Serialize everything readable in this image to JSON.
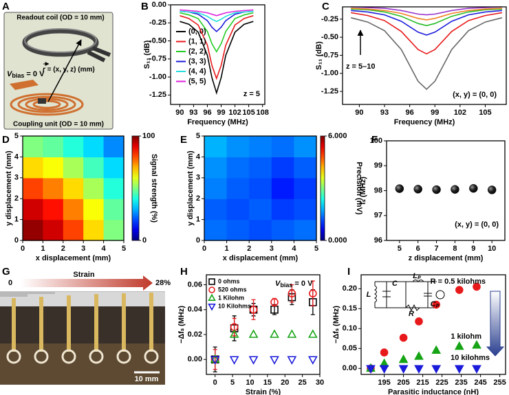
{
  "illustrations": {
    "A": {
      "panel": "A",
      "coil_label": "Readout coil (OD = 10 mm)",
      "bias_symbol": "V",
      "bias_subscript": "bias",
      "bias_text": " = 0 V",
      "vector_symbol": "r",
      "vector_text": " = (x, y, z) (mm)",
      "unit_label": "Coupling unit (OD = 10 mm)"
    },
    "G": {
      "panel": "G",
      "strain_label": "Strain",
      "start_label": "0",
      "end_label": "28%",
      "scale_label": "10 mm"
    }
  },
  "chart_data": [
    {
      "type": "line",
      "panel": "B",
      "xlabel": "Frequency (MHz)",
      "ylabel": "S₁₁ (dB)",
      "annotations": [
        "z = 5"
      ],
      "x": [
        90,
        92,
        94,
        96,
        97,
        98,
        99,
        100,
        102,
        104,
        106
      ],
      "xlim": [
        88,
        108.5
      ],
      "xticks": [
        90,
        93,
        96,
        99,
        102,
        105,
        108
      ],
      "ylim": [
        -1.38,
        0
      ],
      "yticks": [
        {
          "value": 0,
          "label": "0.00"
        },
        {
          "value": -0.25,
          "label": "-0.25"
        },
        {
          "value": -0.5,
          "label": "-0.50"
        },
        {
          "value": -0.75,
          "label": "-0.75"
        },
        {
          "value": -1,
          "label": "-1.00"
        },
        {
          "value": -1.25,
          "label": "-1.25"
        }
      ],
      "legend": "center left",
      "series": [
        {
          "name": "(0, 0)",
          "color": "#000000",
          "values": [
            -0.23,
            -0.27,
            -0.38,
            -0.7,
            -1.01,
            -1.22,
            -1.01,
            -0.7,
            -0.38,
            -0.27,
            -0.23
          ]
        },
        {
          "name": "(1, 1)",
          "color": "#e8191b",
          "values": [
            -0.15,
            -0.19,
            -0.28,
            -0.56,
            -0.84,
            -1.02,
            -0.84,
            -0.56,
            -0.28,
            -0.19,
            -0.15
          ]
        },
        {
          "name": "(2, 2)",
          "color": "#22cc22",
          "values": [
            -0.11,
            -0.14,
            -0.19,
            -0.37,
            -0.54,
            -0.65,
            -0.54,
            -0.37,
            -0.19,
            -0.14,
            -0.11
          ]
        },
        {
          "name": "(3, 3)",
          "color": "#1a1adb",
          "values": [
            -0.09,
            -0.1,
            -0.13,
            -0.22,
            -0.31,
            -0.37,
            -0.31,
            -0.22,
            -0.13,
            -0.1,
            -0.09
          ]
        },
        {
          "name": "(4, 4)",
          "color": "#22dddd",
          "values": [
            -0.09,
            -0.1,
            -0.11,
            -0.16,
            -0.2,
            -0.23,
            -0.2,
            -0.16,
            -0.11,
            -0.1,
            -0.09
          ]
        },
        {
          "name": "(5, 5)",
          "color": "#dd22dd",
          "values": [
            -0.07,
            -0.08,
            -0.09,
            -0.11,
            -0.13,
            -0.15,
            -0.13,
            -0.11,
            -0.09,
            -0.08,
            -0.07
          ]
        }
      ]
    },
    {
      "type": "line",
      "panel": "C",
      "xlabel": "Frequency (MHz)",
      "ylabel": "S₁₁ (dB)",
      "annotations": [
        "z = 5–10",
        "(x, y) = (0, 0)"
      ],
      "x": [
        89,
        91,
        93,
        95,
        97,
        98,
        99,
        101,
        103,
        105,
        107
      ],
      "xlim": [
        88,
        107.5
      ],
      "xticks": [
        90,
        93,
        96,
        99,
        102,
        105
      ],
      "ylim": [
        -1.43,
        -0.08
      ],
      "yticks": [
        {
          "value": -0.25,
          "label": "-0.25"
        },
        {
          "value": -0.5,
          "label": "-0.50"
        },
        {
          "value": -0.75,
          "label": "-0.75"
        },
        {
          "value": -1,
          "label": "-1.00"
        },
        {
          "value": -1.25,
          "label": "-1.25"
        }
      ],
      "series": [
        {
          "color": "#666666",
          "values": [
            -0.23,
            -0.29,
            -0.41,
            -0.67,
            -1.11,
            -1.22,
            -1.11,
            -0.67,
            -0.41,
            -0.29,
            -0.23
          ]
        },
        {
          "color": "#e8191b",
          "values": [
            -0.16,
            -0.2,
            -0.27,
            -0.42,
            -0.67,
            -0.73,
            -0.67,
            -0.42,
            -0.27,
            -0.2,
            -0.16
          ]
        },
        {
          "color": "#1a1adb",
          "values": [
            -0.13,
            -0.15,
            -0.19,
            -0.28,
            -0.43,
            -0.47,
            -0.43,
            -0.28,
            -0.19,
            -0.15,
            -0.13
          ]
        },
        {
          "color": "#22bb22",
          "values": [
            -0.11,
            -0.12,
            -0.15,
            -0.21,
            -0.31,
            -0.34,
            -0.31,
            -0.21,
            -0.15,
            -0.12,
            -0.11
          ]
        },
        {
          "color": "#f08020",
          "values": [
            -0.1,
            -0.11,
            -0.13,
            -0.17,
            -0.24,
            -0.26,
            -0.24,
            -0.17,
            -0.13,
            -0.11,
            -0.1
          ]
        },
        {
          "color": "#9933cc",
          "values": [
            -0.08,
            -0.09,
            -0.1,
            -0.13,
            -0.18,
            -0.19,
            -0.18,
            -0.13,
            -0.1,
            -0.09,
            -0.08
          ]
        }
      ]
    },
    {
      "type": "heatmap",
      "panel": "D",
      "xlabel": "x displacement (mm)",
      "ylabel": "y displacement (mm)",
      "colorbar_label": "Signal strength (%)",
      "x": [
        0.5,
        1.5,
        2.5,
        3.5,
        4.5
      ],
      "y": [
        0.5,
        1.5,
        2.5,
        3.5,
        4.5
      ],
      "xlim": [
        0,
        5
      ],
      "ylim": [
        0,
        5
      ],
      "xticks": [
        0,
        1,
        2,
        3,
        4,
        5
      ],
      "yticks": [
        0,
        1,
        2,
        3,
        4,
        5
      ],
      "colormap": "jet",
      "clim": [
        0,
        100
      ],
      "cticks": [
        0,
        100
      ],
      "z": [
        [
          98,
          92,
          81,
          66,
          50
        ],
        [
          92,
          86,
          75,
          62,
          47
        ],
        [
          81,
          75,
          66,
          54,
          41
        ],
        [
          66,
          62,
          54,
          44,
          34
        ],
        [
          50,
          47,
          41,
          34,
          26
        ]
      ]
    },
    {
      "type": "heatmap",
      "panel": "E",
      "xlabel": "x displacement (mm)",
      "ylabel": "y displacement (mm)",
      "colorbar_label": "Precision (mV)",
      "x": [
        0.5,
        1.5,
        2.5,
        3.5,
        4.5
      ],
      "y": [
        0.5,
        1.5,
        2.5,
        3.5,
        4.5
      ],
      "xlim": [
        0,
        5
      ],
      "ylim": [
        0,
        5
      ],
      "xticks": [
        0,
        1,
        2,
        3,
        4,
        5
      ],
      "yticks": [
        0,
        1,
        2,
        3,
        4,
        5
      ],
      "colormap": "jet",
      "clim": [
        0,
        6
      ],
      "cticks": [
        {
          "value": 0,
          "label": "0.000"
        },
        {
          "value": 6,
          "label": "6.000"
        }
      ],
      "z": [
        [
          1.4,
          1.3,
          1.2,
          1.3,
          1.4
        ],
        [
          1.3,
          1.2,
          1.3,
          1.1,
          1.2
        ],
        [
          1.5,
          1.3,
          1.2,
          0.9,
          1.1
        ],
        [
          1.6,
          1.4,
          1.3,
          1.1,
          1.3
        ],
        [
          1.8,
          1.6,
          1.5,
          1.4,
          1.6
        ]
      ]
    },
    {
      "type": "scatter",
      "panel": "F",
      "xlabel": "z displacement (mm)",
      "ylabel": "fₛ (MHz)",
      "annotations": [
        "(x, y) = (0, 0)"
      ],
      "x": [
        5,
        6,
        7,
        8,
        9,
        10
      ],
      "xlim": [
        4.3,
        10.7
      ],
      "xticks": [
        5,
        6,
        7,
        8,
        9,
        10
      ],
      "ylim": [
        96,
        100
      ],
      "yticks": [
        96,
        97,
        98,
        99,
        100
      ],
      "series": [
        {
          "color": "#000000",
          "marker": "sphere",
          "values": [
            98.08,
            98.06,
            98.04,
            98.05,
            98.09,
            98.03
          ]
        }
      ]
    },
    {
      "type": "scatter",
      "panel": "H",
      "xlabel": "Strain (%)",
      "ylabel": "−Δfₛ (MHz)",
      "annotations": [
        {
          "symbol": "V",
          "subscript": "bias",
          "text": " = 0 V"
        }
      ],
      "x": [
        0,
        5.5,
        11,
        17,
        22,
        28
      ],
      "xlim": [
        -2.5,
        30
      ],
      "xticks": [
        0,
        5,
        10,
        15,
        20,
        25,
        30
      ],
      "ylim": [
        -0.012,
        0.068
      ],
      "yticks": [
        {
          "value": 0,
          "label": "0.00"
        },
        {
          "value": 0.02,
          "label": "0.02"
        },
        {
          "value": 0.04,
          "label": "0.04"
        },
        {
          "value": 0.06,
          "label": "0.06"
        }
      ],
      "legend": "upper left",
      "series": [
        {
          "name": "0 ohms",
          "color": "#000000",
          "marker": "square",
          "filled": false,
          "values": [
            0,
            0.025,
            0.04,
            0.04,
            0.05,
            0.046
          ],
          "errors": [
            0.01,
            0.01,
            0.005,
            0.004,
            0.006,
            0.01
          ]
        },
        {
          "name": "520 ohms",
          "color": "#e8191b",
          "marker": "circle",
          "filled": false,
          "values": [
            0,
            0.026,
            0.04,
            0.046,
            0.053,
            0.053
          ],
          "errors": [
            0.008,
            0.007,
            0.008,
            0.003,
            0.007,
            0.01
          ]
        },
        {
          "name": "1 Kilohm",
          "color": "#16a416",
          "marker": "triangle-up",
          "filled": false,
          "values": [
            0,
            0.02,
            0.02,
            0.02,
            0.02,
            0.02
          ]
        },
        {
          "name": "10 Kilohms",
          "color": "#1a1adb",
          "marker": "triangle-down",
          "filled": false,
          "values": [
            0,
            0,
            0,
            0,
            0,
            0
          ]
        }
      ]
    },
    {
      "type": "scatter",
      "panel": "I",
      "xlabel": "Parasitic inductance (nH)",
      "ylabel": "−Δfₛ (MHz)",
      "annotations": [
        "R = 0.5 kilohms",
        "1 kilohm",
        "10 kilohms"
      ],
      "circuit_labels": [
        "L",
        "C",
        "Lₚ",
        "R",
        "Cₚ"
      ],
      "x": [
        188,
        195,
        205,
        213,
        222,
        234,
        243
      ],
      "xlim": [
        183,
        258
      ],
      "xticks": [
        195,
        205,
        215,
        225,
        235,
        245,
        255
      ],
      "ylim": [
        -0.015,
        0.235
      ],
      "yticks": [
        {
          "value": 0,
          "label": "0.00"
        },
        {
          "value": 0.05,
          "label": "0.05"
        },
        {
          "value": 0.1,
          "label": "0.10"
        },
        {
          "value": 0.15,
          "label": "0.15"
        },
        {
          "value": 0.2,
          "label": "0.20"
        }
      ],
      "series": [
        {
          "color": "#e8191b",
          "marker": "circle",
          "filled": true,
          "values": [
            0,
            0.04,
            0.077,
            0.118,
            0.16,
            0.197,
            0.205
          ]
        },
        {
          "color": "#16a416",
          "marker": "triangle-up",
          "filled": true,
          "values": [
            0,
            0.012,
            0.022,
            0.03,
            0.045,
            0.055,
            0.058
          ]
        },
        {
          "color": "#1a1adb",
          "marker": "triangle-down",
          "filled": true,
          "values": [
            0,
            0,
            0,
            0,
            0,
            0,
            0
          ]
        }
      ]
    }
  ]
}
